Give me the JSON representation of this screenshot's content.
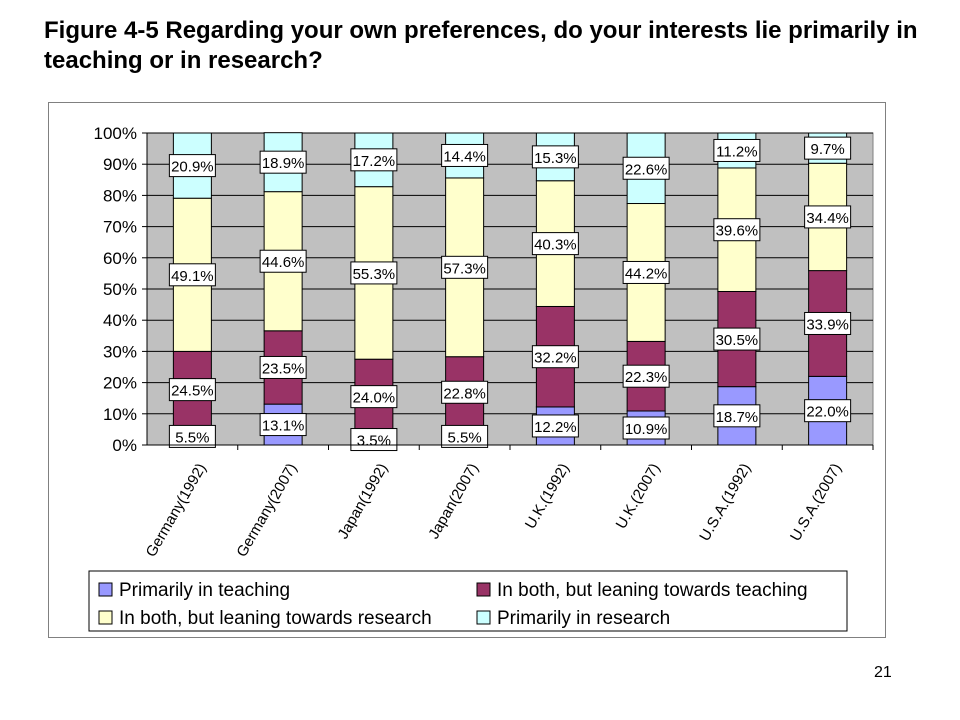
{
  "slide": {
    "title": "Figure 4-5  Regarding your own preferences, do your interests lie primarily in teaching or in research?",
    "page_number": "21"
  },
  "chart_data": {
    "type": "bar",
    "stacked": true,
    "percent_stacked": true,
    "title": "",
    "xlabel": "",
    "ylabel": "",
    "ylim": [
      0,
      100
    ],
    "y_ticks": [
      "0%",
      "10%",
      "20%",
      "30%",
      "40%",
      "50%",
      "60%",
      "70%",
      "80%",
      "90%",
      "100%"
    ],
    "grid": true,
    "plot_background": "#c0c0c0",
    "legend_position": "bottom",
    "categories": [
      "Germany(1992)",
      "Germany(2007)",
      "Japan(1992)",
      "Japan(2007)",
      "U.K.(1992)",
      "U.K.(2007)",
      "U.S.A.(1992)",
      "U.S.A.(2007)"
    ],
    "series": [
      {
        "name": "Primarily in teaching",
        "color": "#9999ff",
        "values": [
          5.5,
          13.1,
          3.5,
          5.5,
          12.2,
          10.9,
          18.7,
          22.0
        ],
        "labels": [
          "5.5%",
          "13.1%",
          "3.5%",
          "5.5%",
          "12.2%",
          "10.9%",
          "18.7%",
          "22.0%"
        ]
      },
      {
        "name": "In both, but leaning towards teaching",
        "color": "#993366",
        "values": [
          24.5,
          23.5,
          24.0,
          22.8,
          32.2,
          22.3,
          30.5,
          33.9
        ],
        "labels": [
          "24.5%",
          "23.5%",
          "24.0%",
          "22.8%",
          "32.2%",
          "22.3%",
          "30.5%",
          "33.9%"
        ]
      },
      {
        "name": "In both, but leaning towards research",
        "color": "#ffffcc",
        "values": [
          49.1,
          44.6,
          55.3,
          57.3,
          40.3,
          44.2,
          39.6,
          34.4
        ],
        "labels": [
          "49.1%",
          "44.6%",
          "55.3%",
          "57.3%",
          "40.3%",
          "44.2%",
          "39.6%",
          "34.4%"
        ]
      },
      {
        "name": "Primarily in research",
        "color": "#ccffff",
        "values": [
          20.9,
          18.9,
          17.2,
          14.4,
          15.3,
          22.6,
          11.2,
          9.7
        ],
        "labels": [
          "20.9%",
          "18.9%",
          "17.2%",
          "14.4%",
          "15.3%",
          "22.6%",
          "11.2%",
          "9.7%"
        ]
      }
    ]
  }
}
